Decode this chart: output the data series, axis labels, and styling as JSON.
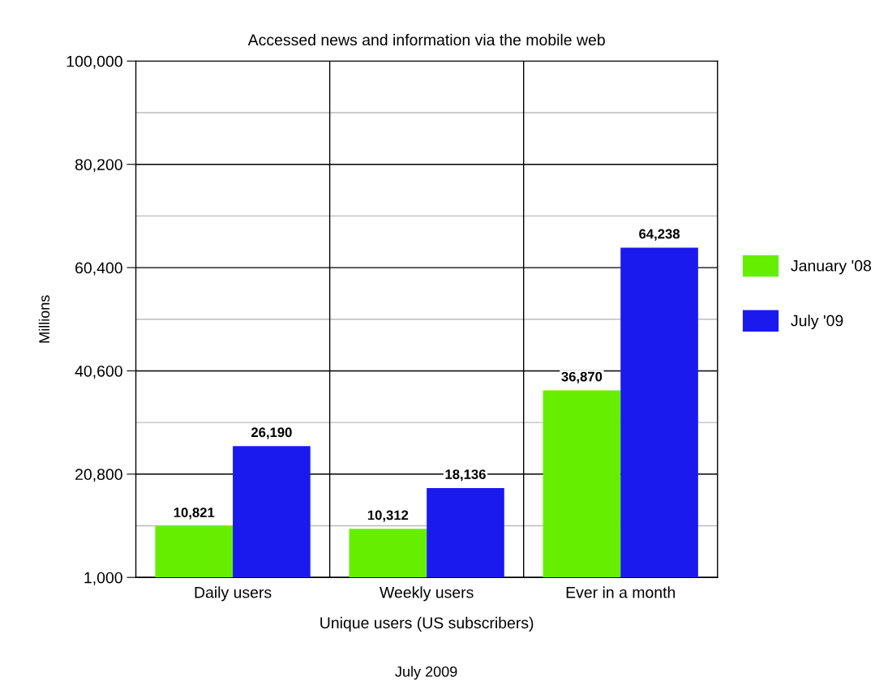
{
  "chart_data": {
    "type": "bar",
    "title": "Accessed news and information via the mobile web",
    "categories": [
      "Daily users",
      "Weekly users",
      "Ever in a month"
    ],
    "xlabel": "Unique users (US subscribers)",
    "ylabel": "Millions",
    "series": [
      {
        "name": "January '08",
        "color": "#66ee00",
        "values": [
          10821,
          10312,
          36870
        ],
        "value_labels": [
          "10,821",
          "10,312",
          "36,870"
        ]
      },
      {
        "name": "July '09",
        "color": "#1a1aee",
        "values": [
          26190,
          18136,
          64238
        ],
        "value_labels": [
          "26,190",
          "18,136",
          "64,238"
        ]
      }
    ],
    "ylim": [
      1000,
      100000
    ],
    "yticks": [
      {
        "value": 1000,
        "label": "1,000"
      },
      {
        "value": 10900,
        "label": null
      },
      {
        "value": 20800,
        "label": "20,800"
      },
      {
        "value": 30700,
        "label": null
      },
      {
        "value": 40600,
        "label": "40,600"
      },
      {
        "value": 50500,
        "label": null
      },
      {
        "value": 60400,
        "label": "60,400"
      },
      {
        "value": 70300,
        "label": null
      },
      {
        "value": 80200,
        "label": "80,200"
      },
      {
        "value": 90100,
        "label": null
      },
      {
        "value": 100000,
        "label": "100,000"
      }
    ],
    "grid": true,
    "legend": "right",
    "annotations": [
      "July 2009"
    ]
  }
}
